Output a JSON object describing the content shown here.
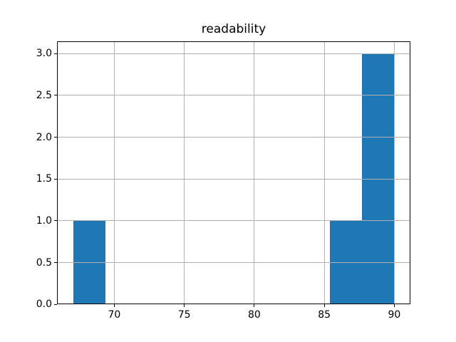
{
  "chart_data": {
    "type": "bar",
    "subtype": "histogram",
    "title": "readability",
    "xlabel": "",
    "ylabel": "",
    "bins": [
      {
        "x0": 67.06,
        "x1": 69.35,
        "count": 1
      },
      {
        "x0": 85.41,
        "x1": 87.71,
        "count": 1
      },
      {
        "x0": 87.71,
        "x1": 90.0,
        "count": 3
      }
    ],
    "xlim": [
      65.91,
      91.15
    ],
    "ylim": [
      0,
      3.15
    ],
    "xticks": [
      70,
      75,
      80,
      85,
      90
    ],
    "xtick_labels": [
      "70",
      "75",
      "80",
      "85",
      "90"
    ],
    "yticks": [
      0,
      0.5,
      1,
      1.5,
      2,
      2.5,
      3
    ],
    "ytick_labels": [
      "0.0",
      "0.5",
      "1.0",
      "1.5",
      "2.0",
      "2.5",
      "3.0"
    ],
    "grid": true,
    "grid_above_bars": true,
    "legend": null,
    "colors": {
      "bar_fill": "#1f77b4",
      "grid": "#b0b0b0",
      "spine": "#000000",
      "background": "#ffffff",
      "text": "#000000"
    }
  }
}
